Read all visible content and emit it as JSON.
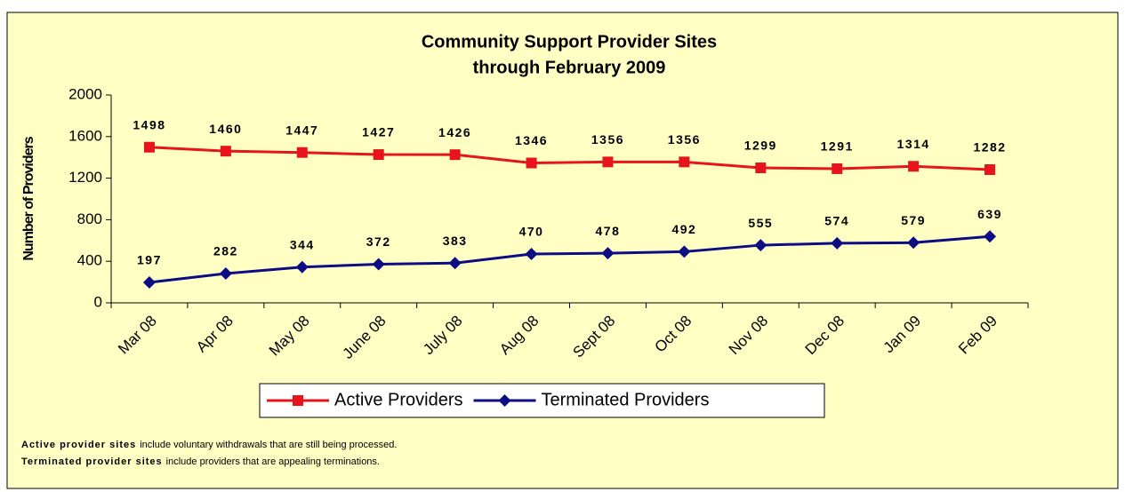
{
  "chart_data": {
    "type": "line",
    "title": "Community Support Provider Sites",
    "subtitle": "through February 2009",
    "y_label": "Number of Providers",
    "categories": [
      "Mar 08",
      "Apr 08",
      "May 08",
      "June 08",
      "July 08",
      "Aug 08",
      "Sept 08",
      "Oct 08",
      "Nov 08",
      "Dec 08",
      "Jan 09",
      "Feb 09"
    ],
    "series": [
      {
        "name": "Active Providers",
        "color": "#e8141b",
        "marker": "square",
        "values": [
          1498,
          1460,
          1447,
          1427,
          1426,
          1346,
          1356,
          1356,
          1299,
          1291,
          1314,
          1282
        ]
      },
      {
        "name": "Terminated Providers",
        "color": "#0c0c84",
        "marker": "diamond",
        "values": [
          197,
          282,
          344,
          372,
          383,
          470,
          478,
          492,
          555,
          574,
          579,
          639
        ]
      }
    ],
    "ylim": [
      0,
      2000
    ],
    "yticks": [
      0,
      400,
      800,
      1200,
      1600,
      2000
    ],
    "grid": false,
    "legend": "bottom",
    "notes": [
      {
        "bold": "Active provider sites",
        "text": "include voluntary withdrawals that are still being processed."
      },
      {
        "bold": "Terminated provider sites",
        "text": "include providers that are appealing terminations."
      }
    ]
  }
}
